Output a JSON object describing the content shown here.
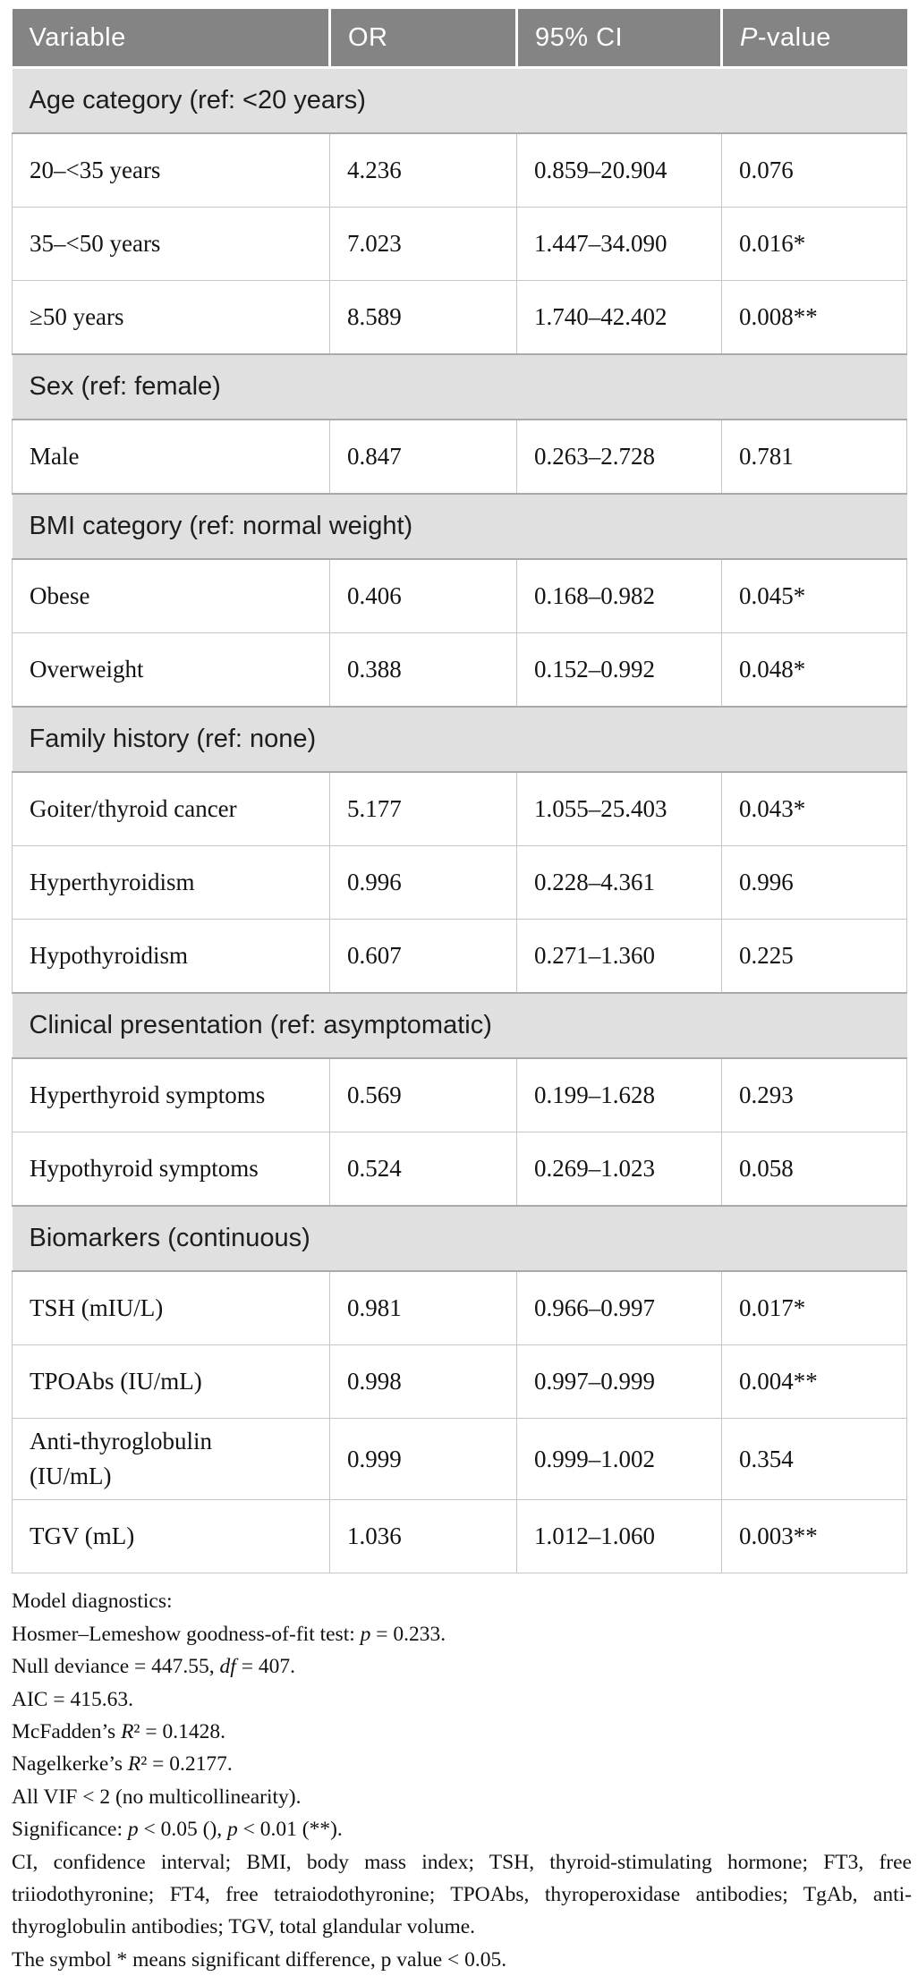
{
  "colors": {
    "header_bg": "#848484",
    "header_text": "#ffffff",
    "section_bg": "#e0e0e0",
    "data_row_bg": "#ffffff",
    "grid_border": "#c6c6c6",
    "section_border": "#a9a9a9",
    "body_text": "#131313"
  },
  "table": {
    "columns": [
      {
        "key": "variable",
        "label": "Variable"
      },
      {
        "key": "or",
        "label": "OR"
      },
      {
        "key": "ci",
        "label": "95% CI"
      },
      {
        "key": "p-value",
        "label": [
          {
            "t": "P",
            "i": true
          },
          {
            "t": "-value"
          }
        ]
      }
    ],
    "sections": [
      {
        "title": "Age category (ref: <20 years)",
        "rows": [
          {
            "variable": "20–<35 years",
            "or": "4.236",
            "ci": "0.859–20.904",
            "p": "0.076",
            "stars": ""
          },
          {
            "variable": "35–<50 years",
            "or": "7.023",
            "ci": "1.447–34.090",
            "p": "0.016",
            "stars": "*"
          },
          {
            "variable": "≥50 years",
            "or": "8.589",
            "ci": "1.740–42.402",
            "p": "0.008",
            "stars": "**"
          }
        ]
      },
      {
        "title": "Sex (ref: female)",
        "rows": [
          {
            "variable": "Male",
            "or": "0.847",
            "ci": "0.263–2.728",
            "p": "0.781",
            "stars": ""
          }
        ]
      },
      {
        "title": "BMI category (ref: normal weight)",
        "rows": [
          {
            "variable": "Obese",
            "or": "0.406",
            "ci": "0.168–0.982",
            "p": "0.045",
            "stars": "*"
          },
          {
            "variable": "Overweight",
            "or": "0.388",
            "ci": "0.152–0.992",
            "p": "0.048",
            "stars": "*"
          }
        ]
      },
      {
        "title": "Family history (ref: none)",
        "rows": [
          {
            "variable": "Goiter/thyroid cancer",
            "or": "5.177",
            "ci": "1.055–25.403",
            "p": "0.043",
            "stars": "*"
          },
          {
            "variable": "Hyperthyroidism",
            "or": "0.996",
            "ci": "0.228–4.361",
            "p": "0.996",
            "stars": ""
          },
          {
            "variable": "Hypothyroidism",
            "or": "0.607",
            "ci": "0.271–1.360",
            "p": "0.225",
            "stars": ""
          }
        ]
      },
      {
        "title": "Clinical presentation (ref: asymptomatic)",
        "rows": [
          {
            "variable": "Hyperthyroid symptoms",
            "or": "0.569",
            "ci": "0.199–1.628",
            "p": "0.293",
            "stars": ""
          },
          {
            "variable": "Hypothyroid symptoms",
            "or": "0.524",
            "ci": "0.269–1.023",
            "p": "0.058",
            "stars": ""
          }
        ]
      },
      {
        "title": "Biomarkers (continuous)",
        "rows": [
          {
            "variable": "TSH (mIU/L)",
            "or": "0.981",
            "ci": "0.966–0.997",
            "p": "0.017",
            "stars": "*"
          },
          {
            "variable": "TPOAbs (IU/mL)",
            "or": "0.998",
            "ci": "0.997–0.999",
            "p": "0.004",
            "stars": "**"
          },
          {
            "variable": "Anti-thyroglobulin (IU/mL)",
            "or": "0.999",
            "ci": "0.999–1.002",
            "p": "0.354",
            "stars": ""
          },
          {
            "variable": "TGV (mL)",
            "or": "1.036",
            "ci": "1.012–1.060",
            "p": "0.003",
            "stars": "**"
          }
        ]
      }
    ]
  },
  "footnotes": [
    [
      {
        "t": "Model diagnostics:"
      }
    ],
    [
      {
        "t": "Hosmer–Lemeshow goodness-of-fit test: "
      },
      {
        "t": "p",
        "i": true
      },
      {
        "t": " = 0.233."
      }
    ],
    [
      {
        "t": "Null deviance = 447.55, "
      },
      {
        "t": "df",
        "i": true
      },
      {
        "t": " = 407."
      }
    ],
    [
      {
        "t": "AIC = 415.63."
      }
    ],
    [
      {
        "t": "McFadden’s "
      },
      {
        "t": "R",
        "i": true
      },
      {
        "t": "² = 0.1428."
      }
    ],
    [
      {
        "t": "Nagelkerke’s "
      },
      {
        "t": "R",
        "i": true
      },
      {
        "t": "² = 0.2177."
      }
    ],
    [
      {
        "t": "All VIF < 2 (no multicollinearity)."
      }
    ],
    [
      {
        "t": "Significance: "
      },
      {
        "t": "p",
        "i": true
      },
      {
        "t": " < 0.05 (), "
      },
      {
        "t": "p",
        "i": true
      },
      {
        "t": " < 0.01 (**)."
      }
    ],
    [
      {
        "t": "CI, confidence interval; BMI, body mass index; TSH, thyroid-stimulating hormone; FT3, free triiodothyronine; FT4, free tetraiodothyronine; TPOAbs, thyroperoxidase antibodies; TgAb, anti-thyroglobulin antibodies; TGV, total glandular volume."
      }
    ],
    [
      {
        "t": "The symbol * means significant difference, p value < 0.05."
      }
    ]
  ]
}
